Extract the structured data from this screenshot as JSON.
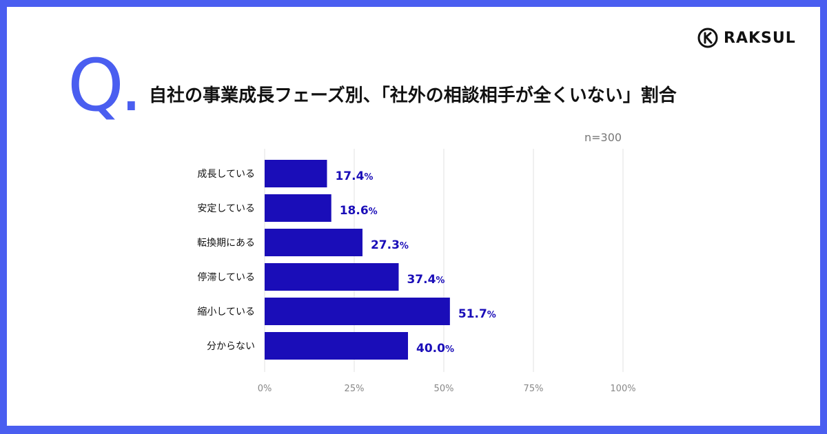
{
  "brand": {
    "name": "RAKSUL",
    "icon": "raksul-logo-icon"
  },
  "question_mark": "Q.",
  "title": "自社の事業成長フェーズ別、「社外の相談相手が全くいない」割合",
  "sample_note": "n=300",
  "colors": {
    "frame": "#4a5ef0",
    "bar": "#1a0db8",
    "label": "#1a0db8",
    "grid": "#e2e2e2"
  },
  "chart_data": {
    "type": "bar",
    "orientation": "horizontal",
    "categories": [
      "成長している",
      "安定している",
      "転換期にある",
      "停滞している",
      "縮小している",
      "分からない"
    ],
    "values": [
      17.4,
      18.6,
      27.3,
      37.4,
      51.7,
      40.0
    ],
    "value_labels": [
      "17.4",
      "18.6",
      "27.3",
      "37.4",
      "51.7",
      "40.0"
    ],
    "value_unit": "%",
    "xlim": [
      0,
      100
    ],
    "xticks": [
      "0%",
      "25%",
      "50%",
      "75%",
      "100%"
    ],
    "xtick_values": [
      0,
      25,
      50,
      75,
      100
    ],
    "grid": true
  }
}
